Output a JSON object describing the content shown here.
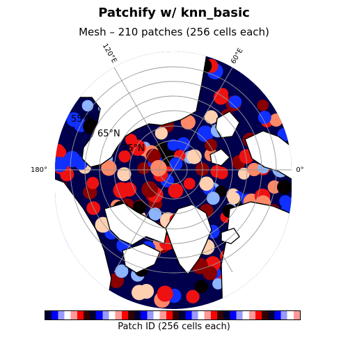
{
  "title": "Patchify w/ knn_basic",
  "subtitle": "Mesh – 210 patches (256 cells each)",
  "longitude_labels": {
    "lon_120E": "120°E",
    "lon_60E": "60°E",
    "lon_180": "180°",
    "lon_0": "0°"
  },
  "latitude_labels": {
    "lat_55": "55°N",
    "lat_65": "65°N",
    "lat_75": "75°N"
  },
  "colorbar": {
    "label": "Patch ID (256 cells each)",
    "colormap": "flag-like (blue-white-red-black)"
  },
  "colors": {
    "ocean_patch_dark": "#00004d",
    "blue": "#1030ff",
    "light_blue": "#8cb4ff",
    "red": "#ee1111",
    "dark_red": "#880000",
    "salmon": "#ff8866",
    "peach": "#ffd0b0",
    "black": "#050000",
    "land": "#ffffff",
    "grid": "#999999"
  }
}
